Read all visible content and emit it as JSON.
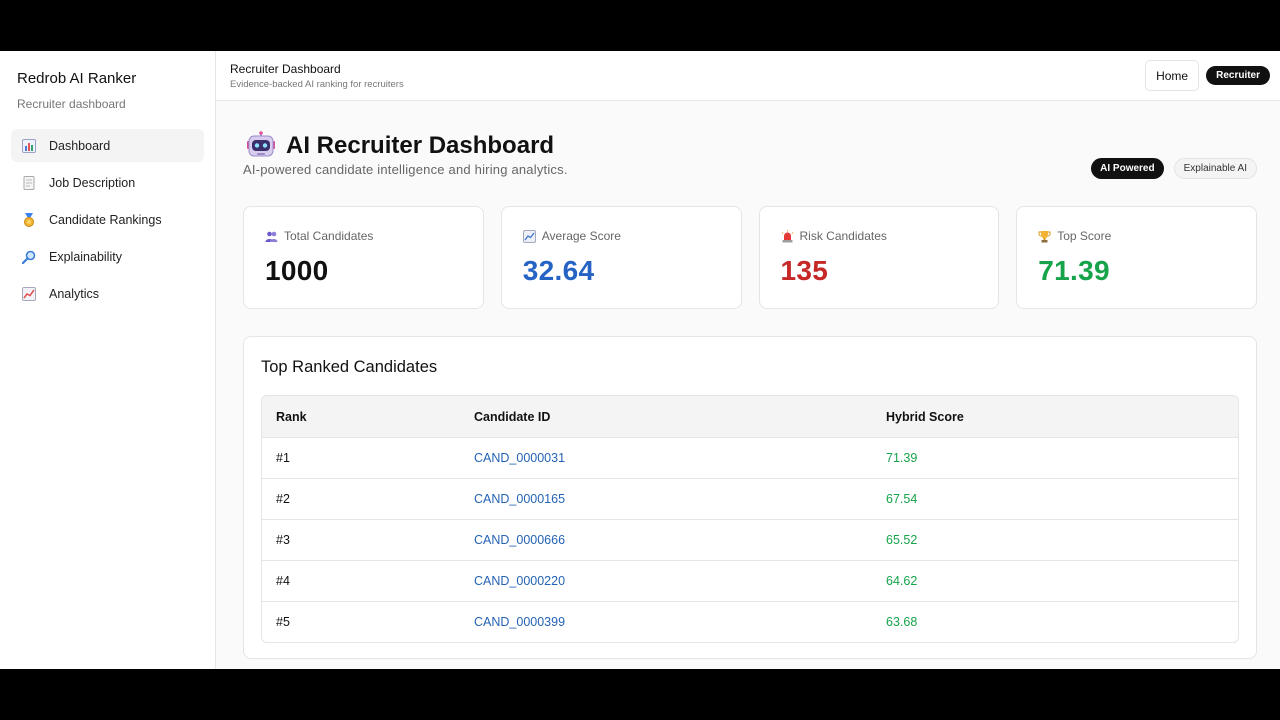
{
  "sidebar": {
    "brand": "Redrob AI Ranker",
    "subtitle": "Recruiter dashboard",
    "items": [
      {
        "label": "Dashboard",
        "icon": "bar-chart-icon",
        "active": true
      },
      {
        "label": "Job Description",
        "icon": "document-icon",
        "active": false
      },
      {
        "label": "Candidate Rankings",
        "icon": "medal-icon",
        "active": false
      },
      {
        "label": "Explainability",
        "icon": "magnifier-icon",
        "active": false
      },
      {
        "label": "Analytics",
        "icon": "trend-chart-icon",
        "active": false
      }
    ]
  },
  "topbar": {
    "title": "Recruiter Dashboard",
    "subtitle": "Evidence-backed AI ranking for recruiters",
    "home_label": "Home",
    "role_label": "Recruiter"
  },
  "hero": {
    "title": "AI Recruiter Dashboard",
    "subtitle": "AI-powered candidate intelligence and hiring analytics.",
    "badge_primary": "AI Powered",
    "badge_secondary": "Explainable AI"
  },
  "stats": [
    {
      "label": "Total Candidates",
      "value": "1000",
      "color": "#111111",
      "icon": "people-icon"
    },
    {
      "label": "Average Score",
      "value": "32.64",
      "color": "#2563c4",
      "icon": "trend-chart-icon"
    },
    {
      "label": "Risk Candidates",
      "value": "135",
      "color": "#c62828",
      "icon": "alarm-light-icon"
    },
    {
      "label": "Top Score",
      "value": "71.39",
      "color": "#16a34a",
      "icon": "trophy-icon"
    }
  ],
  "table": {
    "title": "Top Ranked Candidates",
    "headers": [
      "Rank",
      "Candidate ID",
      "Hybrid Score"
    ],
    "rows": [
      {
        "rank": "#1",
        "id": "CAND_0000031",
        "score": "71.39"
      },
      {
        "rank": "#2",
        "id": "CAND_0000165",
        "score": "67.54"
      },
      {
        "rank": "#3",
        "id": "CAND_0000666",
        "score": "65.52"
      },
      {
        "rank": "#4",
        "id": "CAND_0000220",
        "score": "64.62"
      },
      {
        "rank": "#5",
        "id": "CAND_0000399",
        "score": "63.68"
      }
    ]
  }
}
